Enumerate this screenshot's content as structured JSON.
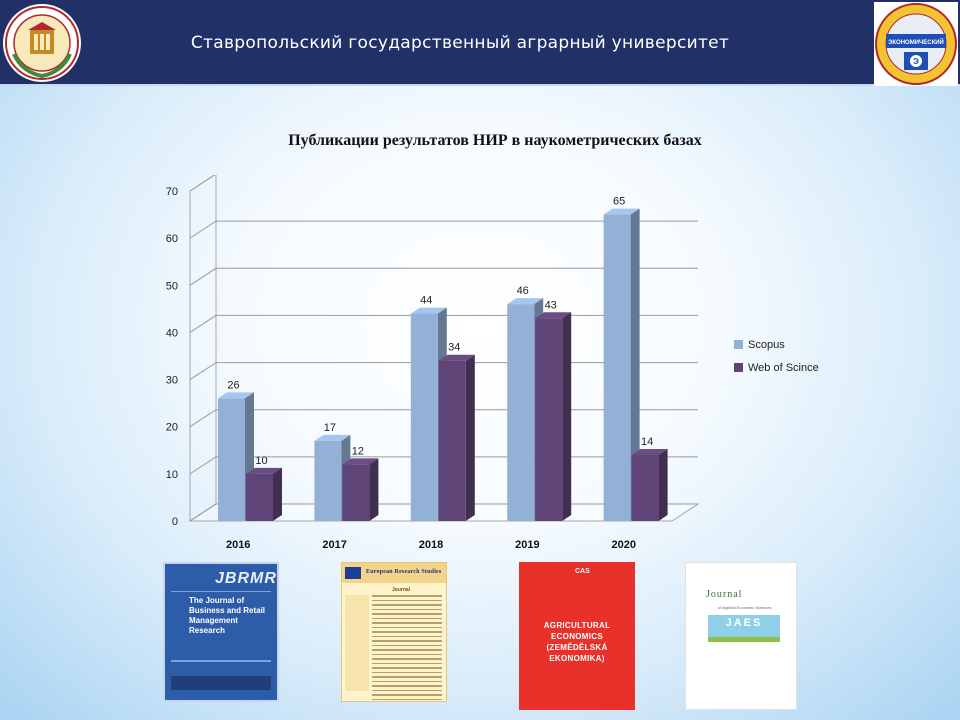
{
  "header": {
    "title": "Ставропольский государственный аграрный университет",
    "left_logo": {
      "icon": "university-seal-icon"
    },
    "right_logo": {
      "icon": "economic-faculty-emblem-icon",
      "text": "ЭКОНОМИЧЕСКИЙ ФАКУЛЬТЕТ"
    }
  },
  "chart_data": {
    "type": "bar",
    "title": "Публикации результатов НИР в наукометрических базах",
    "categories": [
      "2016",
      "2017",
      "2018",
      "2019",
      "2020"
    ],
    "series": [
      {
        "name": "Scopus",
        "values": [
          26,
          17,
          44,
          46,
          65
        ],
        "color": "#93b1d6"
      },
      {
        "name": "Web of Scince",
        "values": [
          10,
          12,
          34,
          43,
          14
        ],
        "color": "#5f4577"
      }
    ],
    "ylim": [
      0,
      70
    ],
    "yticks": [
      0,
      10,
      20,
      30,
      40,
      50,
      60,
      70
    ],
    "grid": true,
    "three_d": true,
    "legend": "right",
    "data_labels": true
  },
  "journals": [
    {
      "icon": "jbrmr-journal-cover-icon",
      "head": "JBRMR",
      "name": "The Journal of Business and Retail Management Research"
    },
    {
      "icon": "european-research-studies-cover-icon",
      "head": "European Research Studies",
      "sub": "Journal"
    },
    {
      "icon": "agricultural-economics-cover-icon",
      "logo": "CAS",
      "name": "AGRICULTURAL ECONOMICS (ZEMĚDĚLSKÁ EKONOMIKA)"
    },
    {
      "icon": "jaes-journal-cover-icon",
      "head": "Journal",
      "sub": "of Applied Economic Sciences",
      "band": "JAES"
    }
  ]
}
